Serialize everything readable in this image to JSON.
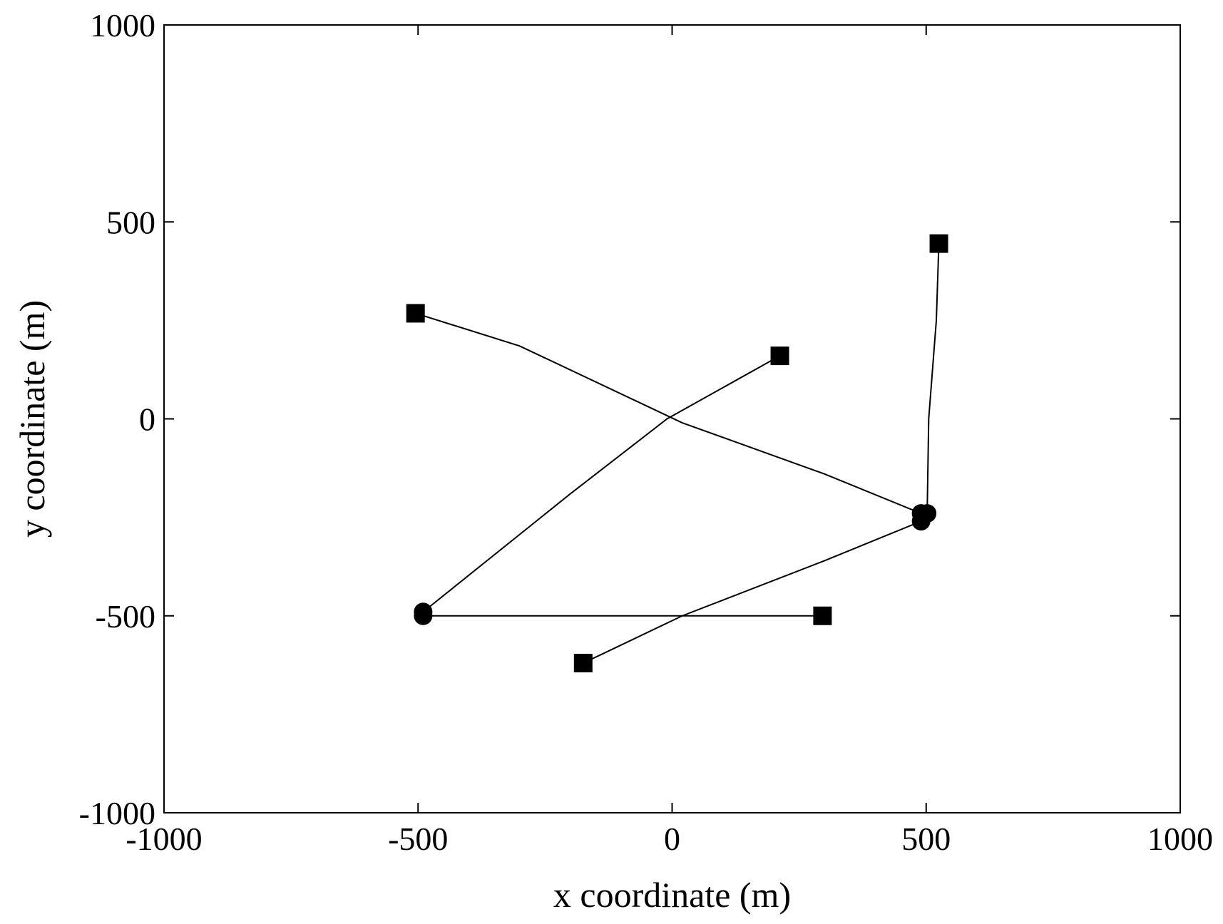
{
  "chart_data": {
    "type": "line",
    "title": "",
    "xlabel": "x coordinate (m)",
    "ylabel": "y coordinate (m)",
    "xlim": [
      -1000,
      1000
    ],
    "ylim": [
      -1000,
      1000
    ],
    "xticks": [
      -1000,
      -500,
      0,
      500,
      1000
    ],
    "yticks": [
      -1000,
      -500,
      0,
      500,
      1000
    ],
    "xtick_labels": [
      "-1000",
      "-500",
      "0",
      "500",
      "1000"
    ],
    "ytick_labels": [
      "-1000",
      "-500",
      "0",
      "500",
      "1000"
    ],
    "grid": false,
    "legend": "none",
    "line_color": "#000000",
    "start_marker": "square",
    "end_marker": "circle",
    "series": [
      {
        "x": [
          -505,
          -300,
          20,
          300,
          490
        ],
        "y": [
          268,
          185,
          -10,
          -140,
          -240
        ]
      },
      {
        "x": [
          212,
          -10,
          -200,
          -490
        ],
        "y": [
          160,
          0,
          -190,
          -490
        ]
      },
      {
        "x": [
          296,
          -490
        ],
        "y": [
          -500,
          -500
        ]
      },
      {
        "x": [
          -175,
          20,
          300,
          490
        ],
        "y": [
          -620,
          -500,
          -360,
          -260
        ]
      },
      {
        "x": [
          525,
          520,
          505,
          502
        ],
        "y": [
          445,
          250,
          0,
          -240
        ]
      }
    ]
  }
}
